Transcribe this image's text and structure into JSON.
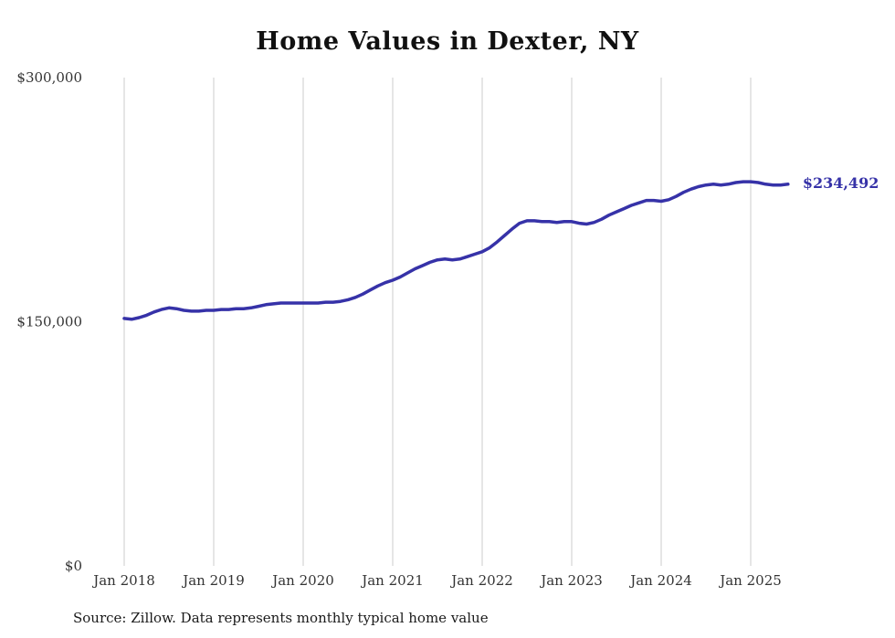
{
  "title": "Home Values in Dexter, NY",
  "source_note": "Source: Zillow. Data represents monthly typical home value",
  "end_label": "$234,492",
  "colors": {
    "line": "#3632a8",
    "grid": "#cccccc",
    "tick": "#333333",
    "end_label": "#3632a8",
    "title": "#111111"
  },
  "chart_data": {
    "type": "line",
    "title": "Home Values in Dexter, NY",
    "xlabel": "",
    "ylabel": "",
    "ylim": [
      0,
      300000
    ],
    "grid": "vertical-only",
    "legend_position": "none",
    "y_ticks": [
      {
        "value": 0,
        "label": "$0"
      },
      {
        "value": 150000,
        "label": "$150,000"
      },
      {
        "value": 300000,
        "label": "$300,000"
      }
    ],
    "x_ticks": [
      {
        "value": 2018,
        "label": "Jan 2018"
      },
      {
        "value": 2019,
        "label": "Jan 2019"
      },
      {
        "value": 2020,
        "label": "Jan 2020"
      },
      {
        "value": 2021,
        "label": "Jan 2021"
      },
      {
        "value": 2022,
        "label": "Jan 2022"
      },
      {
        "value": 2023,
        "label": "Jan 2023"
      },
      {
        "value": 2024,
        "label": "Jan 2024"
      },
      {
        "value": 2025,
        "label": "Jan 2025"
      }
    ],
    "series": [
      {
        "name": "Monthly typical home value",
        "start_year": 2018,
        "interval_months": 1,
        "end_value_label": "$234,492",
        "values": [
          152000,
          151500,
          152500,
          154000,
          156000,
          157500,
          158500,
          158000,
          157000,
          156500,
          156500,
          157000,
          157000,
          157500,
          157500,
          158000,
          158000,
          158500,
          159500,
          160500,
          161000,
          161500,
          161500,
          161500,
          161500,
          161500,
          161500,
          162000,
          162000,
          162500,
          163500,
          165000,
          167000,
          169500,
          172000,
          174000,
          175500,
          177500,
          180000,
          182500,
          184500,
          186500,
          188000,
          188500,
          188000,
          188500,
          190000,
          191500,
          193000,
          195500,
          199000,
          203000,
          207000,
          210500,
          212000,
          212000,
          211500,
          211500,
          211000,
          211500,
          211500,
          210500,
          210000,
          211000,
          213000,
          215500,
          217500,
          219500,
          221500,
          223000,
          224500,
          224500,
          224000,
          225000,
          227000,
          229500,
          231500,
          233000,
          234000,
          234500,
          234000,
          234500,
          235500,
          236000,
          236000,
          235500,
          234500,
          234000,
          234000,
          234492
        ]
      }
    ]
  }
}
